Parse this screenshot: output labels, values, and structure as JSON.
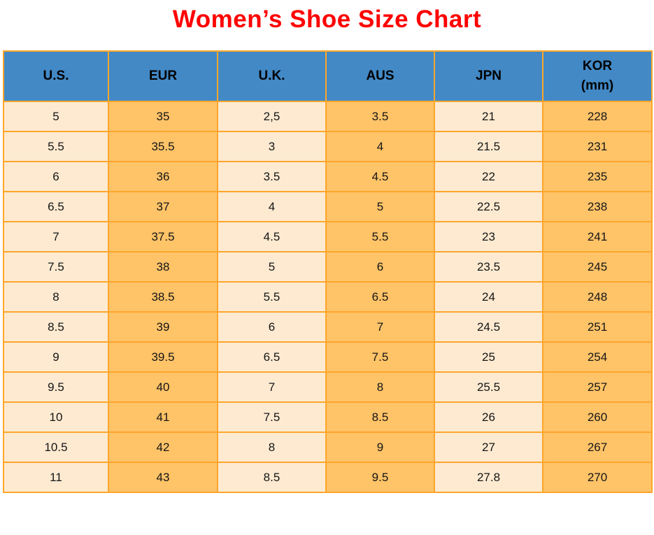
{
  "title": "Women’s Shoe Size Chart",
  "colors": {
    "title_text": "#ff0000",
    "header_background": "#4289c6",
    "column_cream": "#fdead1",
    "column_orange": "#ffc368",
    "grid_border": "#ffa62b",
    "header_text": "#000000",
    "cell_text": "#151515",
    "page_background": "#ffffff"
  },
  "chart_data": {
    "type": "table",
    "title": "Women’s Shoe Size Chart",
    "legend_position": "none",
    "grid": true,
    "columns": [
      {
        "label": "U.S."
      },
      {
        "label": "EUR"
      },
      {
        "label": "U.K."
      },
      {
        "label": "AUS"
      },
      {
        "label": "JPN"
      },
      {
        "label": "KOR",
        "sublabel": "(mm)"
      }
    ],
    "rows": [
      [
        "5",
        "35",
        "2,5",
        "3.5",
        "21",
        "228"
      ],
      [
        "5.5",
        "35.5",
        "3",
        "4",
        "21.5",
        "231"
      ],
      [
        "6",
        "36",
        "3.5",
        "4.5",
        "22",
        "235"
      ],
      [
        "6.5",
        "37",
        "4",
        "5",
        "22.5",
        "238"
      ],
      [
        "7",
        "37.5",
        "4.5",
        "5.5",
        "23",
        "241"
      ],
      [
        "7.5",
        "38",
        "5",
        "6",
        "23.5",
        "245"
      ],
      [
        "8",
        "38.5",
        "5.5",
        "6.5",
        "24",
        "248"
      ],
      [
        "8.5",
        "39",
        "6",
        "7",
        "24.5",
        "251"
      ],
      [
        "9",
        "39.5",
        "6.5",
        "7.5",
        "25",
        "254"
      ],
      [
        "9.5",
        "40",
        "7",
        "8",
        "25.5",
        "257"
      ],
      [
        "10",
        "41",
        "7.5",
        "8.5",
        "26",
        "260"
      ],
      [
        "10.5",
        "42",
        "8",
        "9",
        "27",
        "267"
      ],
      [
        "11",
        "43",
        "8.5",
        "9.5",
        "27.8",
        "270"
      ]
    ]
  }
}
